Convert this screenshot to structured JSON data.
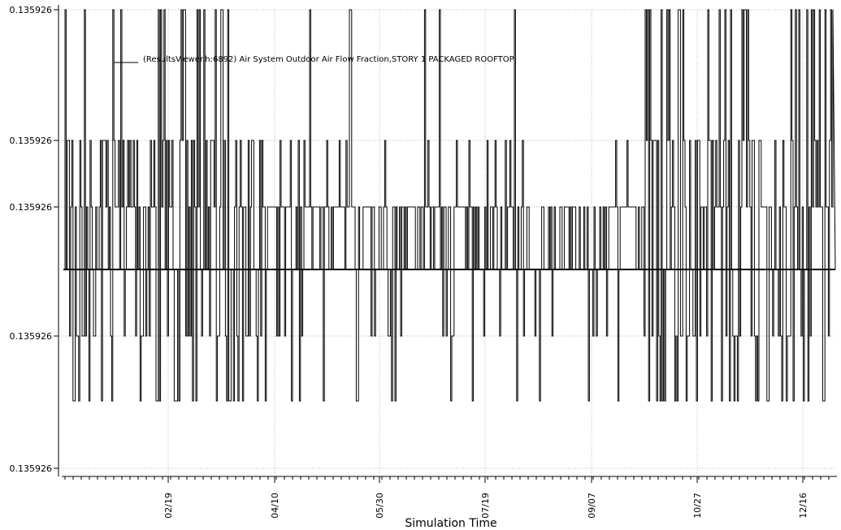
{
  "chart_data": {
    "type": "line",
    "title": "",
    "xlabel": "Simulation Time",
    "ylabel": "",
    "grid": true,
    "legend_position": "top-left",
    "series": [
      {
        "name": "(ResultsViewer.h:6892) Air System Outdoor Air Flow Fraction,STORY 1 PACKAGED ROOFTOP",
        "color": "#000000"
      }
    ],
    "x_ticks": [
      "02/19",
      "04/10",
      "05/30",
      "07/19",
      "09/07",
      "10/27",
      "12/16"
    ],
    "y_tick_labels": [
      "0.135926",
      "0.135926",
      "0.135926",
      "0.135926",
      "0.135926"
    ],
    "baseline_value": "0.135926"
  }
}
